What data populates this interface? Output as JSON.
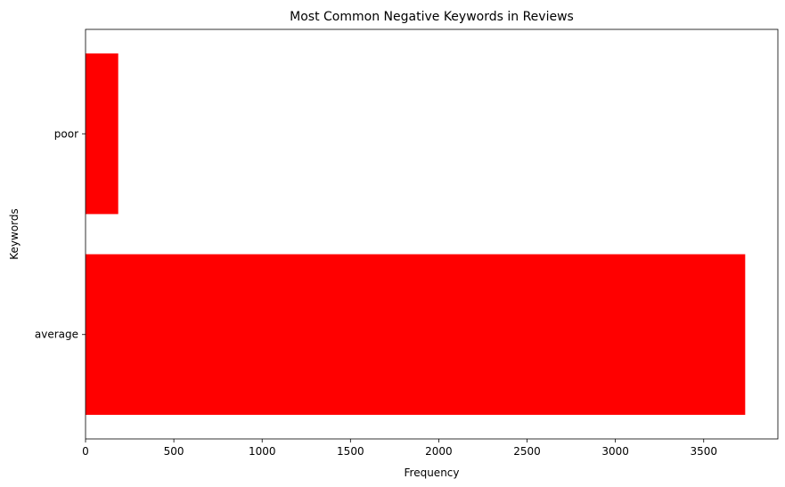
{
  "chart_data": {
    "type": "bar",
    "orientation": "horizontal",
    "title": "Most Common Negative Keywords in Reviews",
    "xlabel": "Frequency",
    "ylabel": "Keywords",
    "categories": [
      "average",
      "poor"
    ],
    "values": [
      3735,
      185
    ],
    "xlim": [
      0,
      3920
    ],
    "xticks": [
      0,
      500,
      1000,
      1500,
      2000,
      2500,
      3000,
      3500
    ],
    "grid": false,
    "bar_color": "#ff0000"
  }
}
